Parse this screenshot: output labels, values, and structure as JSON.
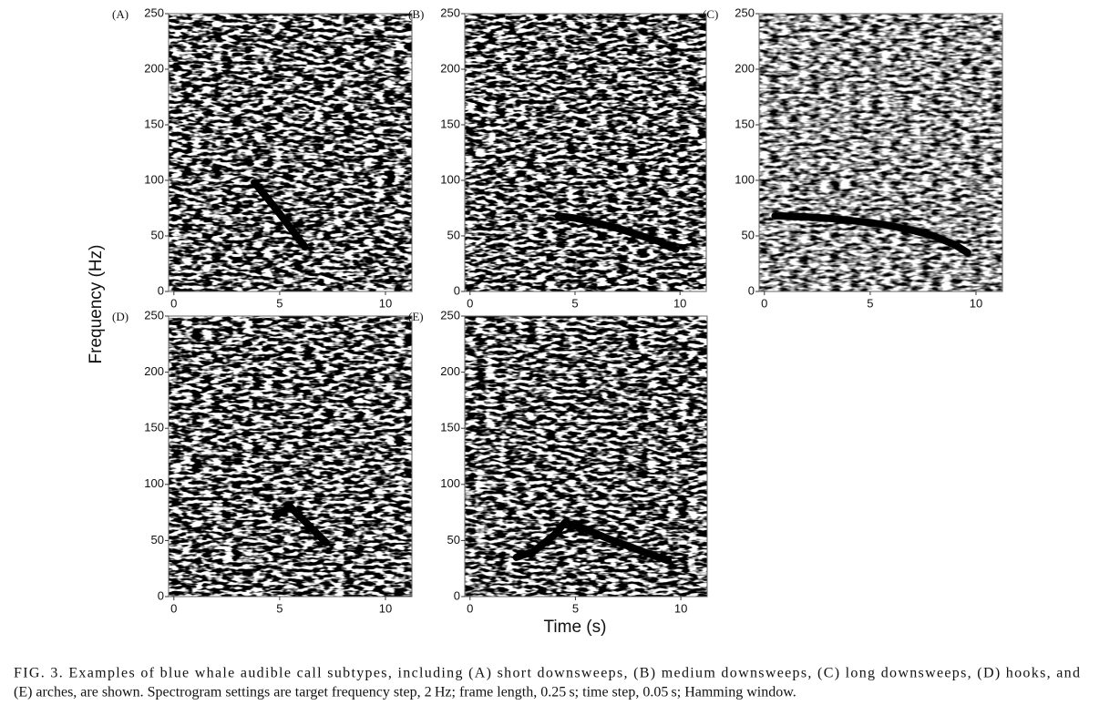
{
  "axis_labels": {
    "y": "Frequency (Hz)",
    "x": "Time (s)"
  },
  "caption": [
    "FIG. 3. Examples of blue whale audible call subtypes, including (A) short downsweeps, (B) medium downsweeps, (C) long downsweeps, (D) hooks, and",
    "(E) arches, are shown. Spectrogram settings are target frequency step, 2 Hz; frame length, 0.25 s; time step, 0.05 s; Hamming window."
  ],
  "chart_data": [
    {
      "type": "line",
      "title": "(A)",
      "color": "#000000",
      "x": [
        3.8,
        4.5,
        5.2,
        5.8,
        6.2
      ],
      "values": [
        98,
        82,
        65,
        50,
        40
      ],
      "xlim": [
        -0.25,
        11.25
      ],
      "ylim": [
        0,
        250
      ],
      "xticks": [
        0,
        5,
        10
      ],
      "yticks": [
        0,
        50,
        100,
        150,
        200,
        250
      ]
    },
    {
      "type": "line",
      "title": "(B)",
      "color": "#000000",
      "x": [
        4.2,
        5,
        6,
        7,
        8,
        9,
        9.8
      ],
      "values": [
        68,
        66,
        62,
        57,
        51,
        45,
        38
      ],
      "xlim": [
        -0.25,
        11.25
      ],
      "ylim": [
        0,
        250
      ],
      "xticks": [
        0,
        5,
        10
      ],
      "yticks": [
        0,
        50,
        100,
        150,
        200,
        250
      ]
    },
    {
      "type": "line",
      "title": "(C)",
      "color": "#000000",
      "x": [
        0.5,
        2,
        3,
        4,
        5,
        6,
        7,
        8,
        9,
        9.6
      ],
      "values": [
        68,
        67,
        66,
        64,
        62,
        59,
        55,
        50,
        42,
        35
      ],
      "xlim": [
        -0.25,
        11.25
      ],
      "ylim": [
        0,
        250
      ],
      "xticks": [
        0,
        5,
        10
      ],
      "yticks": [
        0,
        50,
        100,
        150,
        200,
        250
      ]
    },
    {
      "type": "line",
      "title": "(D)",
      "color": "#000000",
      "x": [
        4.8,
        5.5,
        6.3,
        7.2
      ],
      "values": [
        72,
        80,
        65,
        48
      ],
      "xlim": [
        -0.25,
        11.25
      ],
      "ylim": [
        0,
        250
      ],
      "xticks": [
        0,
        5,
        10
      ],
      "yticks": [
        0,
        50,
        100,
        150,
        200,
        250
      ]
    },
    {
      "type": "line",
      "title": "(E)",
      "color": "#000000",
      "x": [
        2.2,
        3,
        4,
        4.5,
        5.5,
        6.5,
        7.5,
        8.5,
        9.4
      ],
      "values": [
        35,
        40,
        55,
        66,
        60,
        52,
        45,
        38,
        32
      ],
      "xlim": [
        -0.25,
        11.25
      ],
      "ylim": [
        0,
        250
      ],
      "xticks": [
        0,
        5,
        10
      ],
      "yticks": [
        0,
        50,
        100,
        150,
        200,
        250
      ]
    }
  ]
}
